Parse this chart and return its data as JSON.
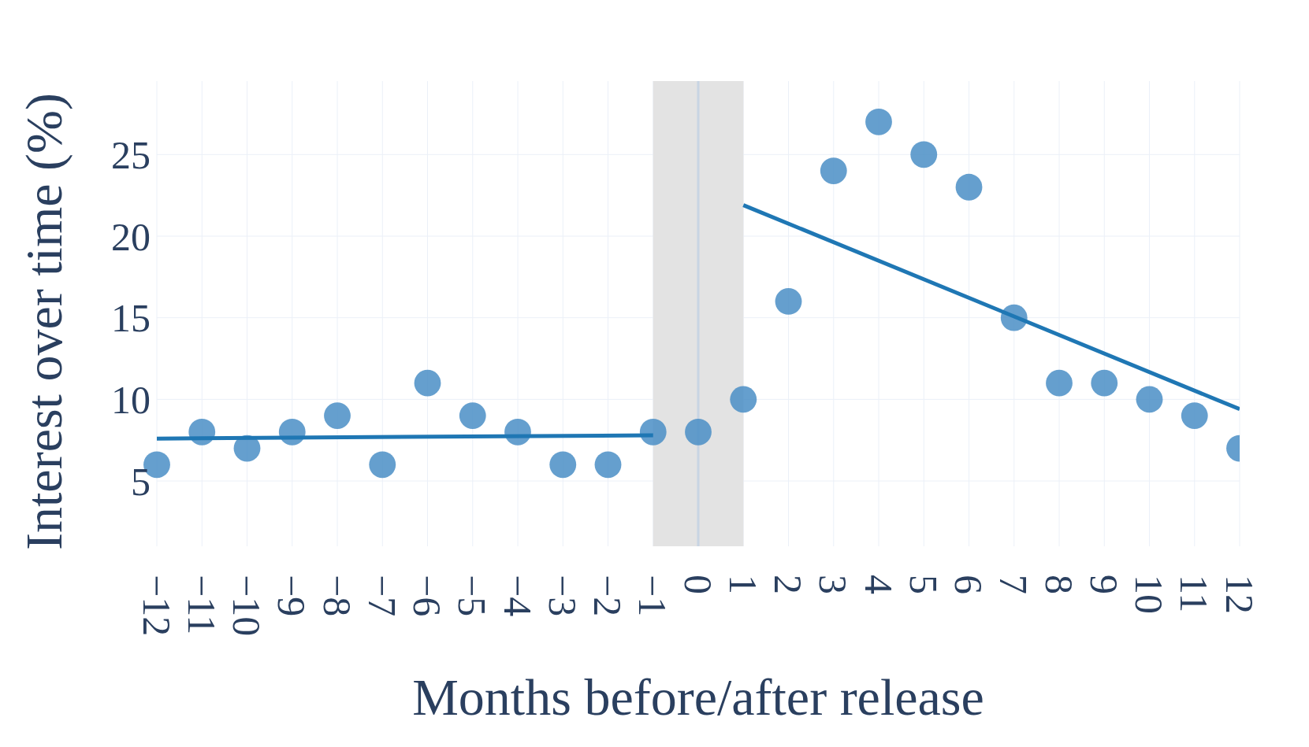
{
  "chart_data": {
    "type": "scatter",
    "xlabel": "Months before/after release",
    "ylabel": "Interest over time (%)",
    "xlim": [
      -12,
      12
    ],
    "ylim": [
      1,
      29.5
    ],
    "xticks": [
      {
        "value": -12,
        "label": "−12"
      },
      {
        "value": -11,
        "label": "−11"
      },
      {
        "value": -10,
        "label": "−10"
      },
      {
        "value": -9,
        "label": "−9"
      },
      {
        "value": -8,
        "label": "−8"
      },
      {
        "value": -7,
        "label": "−7"
      },
      {
        "value": -6,
        "label": "−6"
      },
      {
        "value": -5,
        "label": "−5"
      },
      {
        "value": -4,
        "label": "−4"
      },
      {
        "value": -3,
        "label": "−3"
      },
      {
        "value": -2,
        "label": "−2"
      },
      {
        "value": -1,
        "label": "−1"
      },
      0,
      1,
      2,
      3,
      4,
      5,
      6,
      7,
      8,
      9,
      10,
      11,
      12
    ],
    "yticks": [
      5,
      10,
      15,
      20,
      25
    ],
    "grid": true,
    "marker": "circle",
    "x": [
      -12,
      -11,
      -10,
      -9,
      -8,
      -7,
      -6,
      -5,
      -4,
      -3,
      -2,
      -1,
      0,
      1,
      2,
      3,
      4,
      5,
      6,
      7,
      8,
      9,
      10,
      11,
      12
    ],
    "series": [
      {
        "color": "#4a8ec6",
        "values": [
          6,
          8,
          7,
          8,
          9,
          6,
          11,
          9,
          8,
          6,
          6,
          8,
          8,
          10,
          16,
          24,
          27,
          25,
          23,
          15,
          11,
          11,
          10,
          9,
          7
        ]
      },
      {
        "type": "line",
        "color": "#1f77b4",
        "x": [
          -12,
          -1
        ],
        "values": [
          7.6,
          7.8
        ],
        "marker": "none",
        "line_style": "solid"
      },
      {
        "type": "line",
        "color": "#1f77b4",
        "x": [
          1,
          12
        ],
        "values": [
          21.9,
          9.4
        ],
        "marker": "none",
        "line_style": "solid"
      }
    ],
    "bands": [
      {
        "axis": "x",
        "from": -1,
        "to": 1,
        "color": "#e3e3e3"
      }
    ],
    "ref_lines": [
      {
        "axis": "x",
        "value": 0,
        "color": "#c8d4e3"
      }
    ]
  }
}
